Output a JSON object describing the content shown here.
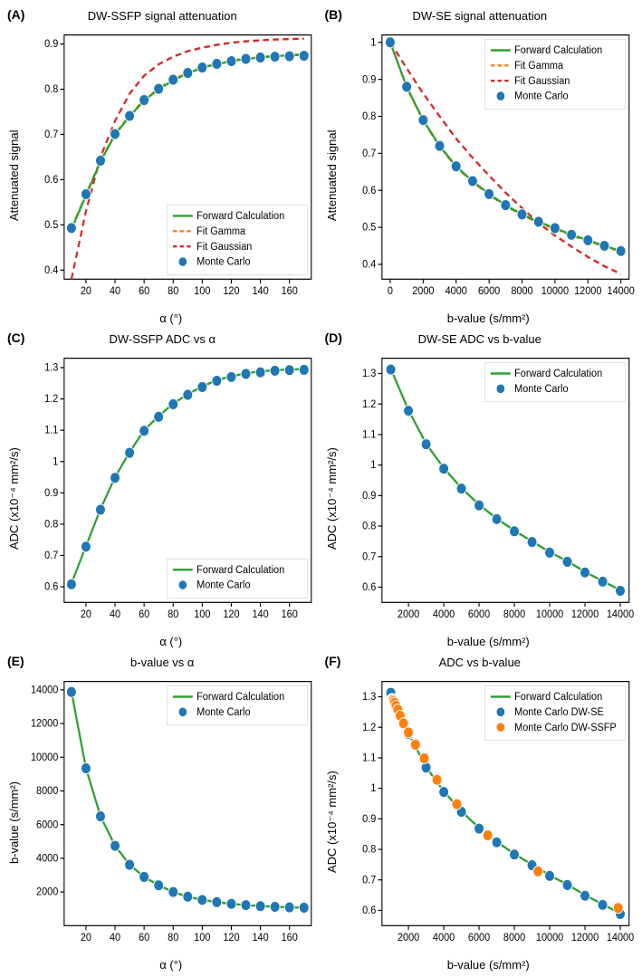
{
  "colors": {
    "forward": "#2ca02c",
    "gamma": "#ff7f0e",
    "gaussian": "#d62728",
    "mc": "#1f77b4",
    "mc_ssfp": "#ff7f0e"
  },
  "line_width": {
    "solid": 2,
    "dash": 2
  },
  "marker_radius": 5,
  "dash_pattern": "6,4",
  "panels": {
    "A": {
      "label": "(A)",
      "title": "DW-SSFP signal attenuation",
      "xlabel": "α (°)",
      "ylabel": "Attenuated signal",
      "xlim": [
        5,
        175
      ],
      "ylim": [
        0.38,
        0.92
      ],
      "xticks": [
        20,
        40,
        60,
        80,
        100,
        120,
        140,
        160
      ],
      "yticks": [
        0.4,
        0.5,
        0.6,
        0.7,
        0.8,
        0.9
      ],
      "legend": {
        "pos": "lower-right",
        "items": [
          {
            "type": "line",
            "color": "forward",
            "label": "Forward Calculation"
          },
          {
            "type": "dash",
            "color": "gamma",
            "label": "Fit Gamma"
          },
          {
            "type": "dash",
            "color": "gaussian",
            "label": "Fit Gaussian"
          },
          {
            "type": "marker",
            "color": "mc",
            "label": "Monte Carlo"
          }
        ]
      },
      "series": {
        "forward": {
          "x": [
            10,
            20,
            30,
            40,
            50,
            60,
            70,
            80,
            90,
            100,
            110,
            120,
            130,
            140,
            150,
            160,
            170
          ],
          "y": [
            0.49,
            0.565,
            0.64,
            0.7,
            0.74,
            0.775,
            0.8,
            0.82,
            0.835,
            0.848,
            0.855,
            0.862,
            0.867,
            0.87,
            0.873,
            0.875,
            0.876
          ]
        },
        "gamma": {
          "x": [
            10,
            20,
            30,
            40,
            50,
            60,
            70,
            80,
            90,
            100,
            110,
            120,
            130,
            140,
            150,
            160,
            170
          ],
          "y": [
            0.492,
            0.568,
            0.642,
            0.702,
            0.742,
            0.777,
            0.802,
            0.822,
            0.836,
            0.849,
            0.856,
            0.863,
            0.868,
            0.871,
            0.874,
            0.876,
            0.877
          ]
        },
        "gaussian": {
          "x": [
            10,
            20,
            30,
            40,
            50,
            60,
            70,
            80,
            90,
            100,
            110,
            120,
            130,
            140,
            150,
            160,
            170
          ],
          "y": [
            0.38,
            0.53,
            0.65,
            0.73,
            0.79,
            0.83,
            0.855,
            0.872,
            0.884,
            0.892,
            0.898,
            0.903,
            0.906,
            0.908,
            0.91,
            0.911,
            0.912
          ]
        },
        "mc": {
          "x": [
            10,
            20,
            30,
            40,
            50,
            60,
            70,
            80,
            90,
            100,
            110,
            120,
            130,
            140,
            150,
            160,
            170
          ],
          "y": [
            0.493,
            0.568,
            0.642,
            0.701,
            0.741,
            0.776,
            0.801,
            0.821,
            0.836,
            0.848,
            0.856,
            0.862,
            0.867,
            0.87,
            0.872,
            0.873,
            0.874
          ]
        }
      }
    },
    "B": {
      "label": "(B)",
      "title": "DW-SE signal attenuation",
      "xlabel": "b-value (s/mm²)",
      "ylabel": "Attenuated signal",
      "xlim": [
        -500,
        14500
      ],
      "ylim": [
        0.36,
        1.02
      ],
      "xticks": [
        0,
        2000,
        4000,
        6000,
        8000,
        10000,
        12000,
        14000
      ],
      "yticks": [
        0.4,
        0.5,
        0.6,
        0.7,
        0.8,
        0.9,
        1.0
      ],
      "legend": {
        "pos": "upper-right",
        "items": [
          {
            "type": "line",
            "color": "forward",
            "label": "Forward Calculation"
          },
          {
            "type": "dash",
            "color": "gamma",
            "label": "Fit Gamma"
          },
          {
            "type": "dash",
            "color": "gaussian",
            "label": "Fit Gaussian"
          },
          {
            "type": "marker",
            "color": "mc",
            "label": "Monte Carlo"
          }
        ]
      },
      "series": {
        "forward": {
          "x": [
            0,
            1000,
            2000,
            3000,
            4000,
            5000,
            6000,
            7000,
            8000,
            9000,
            10000,
            11000,
            12000,
            13000,
            14000
          ],
          "y": [
            1.0,
            0.88,
            0.79,
            0.72,
            0.665,
            0.625,
            0.59,
            0.56,
            0.535,
            0.515,
            0.498,
            0.48,
            0.465,
            0.45,
            0.436
          ]
        },
        "gamma": {
          "x": [
            0,
            1000,
            2000,
            3000,
            4000,
            5000,
            6000,
            7000,
            8000,
            9000,
            10000,
            11000,
            12000,
            13000,
            14000
          ],
          "y": [
            1.0,
            0.878,
            0.788,
            0.718,
            0.663,
            0.623,
            0.588,
            0.558,
            0.533,
            0.513,
            0.495,
            0.478,
            0.463,
            0.448,
            0.434
          ]
        },
        "gaussian": {
          "x": [
            0,
            1000,
            2000,
            3000,
            4000,
            5000,
            6000,
            7000,
            8000,
            9000,
            10000,
            11000,
            12000,
            13000,
            14000
          ],
          "y": [
            1.0,
            0.93,
            0.862,
            0.8,
            0.74,
            0.688,
            0.64,
            0.594,
            0.552,
            0.512,
            0.478,
            0.448,
            0.42,
            0.395,
            0.374
          ]
        },
        "mc": {
          "x": [
            0,
            1000,
            2000,
            3000,
            4000,
            5000,
            6000,
            7000,
            8000,
            9000,
            10000,
            11000,
            12000,
            13000,
            14000
          ],
          "y": [
            1.0,
            0.88,
            0.79,
            0.72,
            0.665,
            0.625,
            0.59,
            0.56,
            0.535,
            0.515,
            0.498,
            0.48,
            0.465,
            0.45,
            0.436
          ]
        }
      }
    },
    "C": {
      "label": "(C)",
      "title": "DW-SSFP ADC vs α",
      "xlabel": "α (°)",
      "ylabel": "ADC (x10⁻⁴ mm²/s)",
      "xlim": [
        5,
        175
      ],
      "ylim": [
        0.55,
        1.33
      ],
      "xticks": [
        20,
        40,
        60,
        80,
        100,
        120,
        140,
        160
      ],
      "yticks": [
        0.6,
        0.7,
        0.8,
        0.9,
        1.0,
        1.1,
        1.2,
        1.3
      ],
      "legend": {
        "pos": "lower-right",
        "items": [
          {
            "type": "line",
            "color": "forward",
            "label": "Forward Calculation"
          },
          {
            "type": "marker",
            "color": "mc",
            "label": "Monte Carlo"
          }
        ]
      },
      "series": {
        "forward": {
          "x": [
            10,
            20,
            30,
            40,
            50,
            60,
            70,
            80,
            90,
            100,
            110,
            120,
            130,
            140,
            150,
            160,
            170
          ],
          "y": [
            0.61,
            0.73,
            0.848,
            0.95,
            1.03,
            1.1,
            1.145,
            1.185,
            1.215,
            1.24,
            1.26,
            1.272,
            1.282,
            1.288,
            1.292,
            1.294,
            1.295
          ]
        },
        "mc": {
          "x": [
            10,
            20,
            30,
            40,
            50,
            60,
            70,
            80,
            90,
            100,
            110,
            120,
            130,
            140,
            150,
            160,
            170
          ],
          "y": [
            0.608,
            0.728,
            0.846,
            0.948,
            1.028,
            1.098,
            1.143,
            1.183,
            1.213,
            1.238,
            1.258,
            1.27,
            1.28,
            1.285,
            1.29,
            1.292,
            1.293
          ]
        }
      }
    },
    "D": {
      "label": "(D)",
      "title": "DW-SE ADC vs b-value",
      "xlabel": "b-value (s/mm²)",
      "ylabel": "ADC (x10⁻⁴ mm²/s)",
      "xlim": [
        500,
        14500
      ],
      "ylim": [
        0.55,
        1.35
      ],
      "xticks": [
        2000,
        4000,
        6000,
        8000,
        10000,
        12000,
        14000
      ],
      "yticks": [
        0.6,
        0.7,
        0.8,
        0.9,
        1.0,
        1.1,
        1.2,
        1.3
      ],
      "legend": {
        "pos": "upper-right",
        "items": [
          {
            "type": "line",
            "color": "forward",
            "label": "Forward Calculation"
          },
          {
            "type": "marker",
            "color": "mc",
            "label": "Monte Carlo"
          }
        ]
      },
      "series": {
        "forward": {
          "x": [
            1000,
            2000,
            3000,
            4000,
            5000,
            6000,
            7000,
            8000,
            9000,
            10000,
            11000,
            12000,
            13000,
            14000
          ],
          "y": [
            1.315,
            1.18,
            1.07,
            0.99,
            0.925,
            0.87,
            0.825,
            0.785,
            0.75,
            0.715,
            0.685,
            0.65,
            0.62,
            0.59
          ]
        },
        "mc": {
          "x": [
            1000,
            2000,
            3000,
            4000,
            5000,
            6000,
            7000,
            8000,
            9000,
            10000,
            11000,
            12000,
            13000,
            14000
          ],
          "y": [
            1.313,
            1.178,
            1.068,
            0.988,
            0.923,
            0.868,
            0.823,
            0.783,
            0.748,
            0.713,
            0.683,
            0.648,
            0.618,
            0.588
          ]
        }
      }
    },
    "E": {
      "label": "(E)",
      "title": "b-value vs α",
      "xlabel": "α (°)",
      "ylabel": "b-value (s/mm²)",
      "xlim": [
        5,
        175
      ],
      "ylim": [
        0,
        14500
      ],
      "xticks": [
        20,
        40,
        60,
        80,
        100,
        120,
        140,
        160
      ],
      "yticks": [
        2000,
        4000,
        6000,
        8000,
        10000,
        12000,
        14000
      ],
      "legend": {
        "pos": "upper-right",
        "items": [
          {
            "type": "line",
            "color": "forward",
            "label": "Forward Calculation"
          },
          {
            "type": "marker",
            "color": "mc",
            "label": "Monte Carlo"
          }
        ]
      },
      "series": {
        "forward": {
          "x": [
            10,
            20,
            30,
            40,
            50,
            60,
            70,
            80,
            90,
            100,
            110,
            120,
            130,
            140,
            150,
            160,
            170
          ],
          "y": [
            13900,
            9350,
            6500,
            4750,
            3620,
            2900,
            2400,
            2000,
            1720,
            1530,
            1400,
            1300,
            1220,
            1160,
            1120,
            1090,
            1070
          ]
        },
        "mc": {
          "x": [
            10,
            20,
            30,
            40,
            50,
            60,
            70,
            80,
            90,
            100,
            110,
            120,
            130,
            140,
            150,
            160,
            170
          ],
          "y": [
            13880,
            9340,
            6490,
            4740,
            3615,
            2895,
            2395,
            1998,
            1718,
            1528,
            1398,
            1298,
            1218,
            1158,
            1118,
            1088,
            1068
          ]
        }
      }
    },
    "F": {
      "label": "(F)",
      "title": "ADC vs b-value",
      "xlabel": "b-value (s/mm²)",
      "ylabel": "ADC (x10⁻⁴ mm²/s)",
      "xlim": [
        500,
        14500
      ],
      "ylim": [
        0.55,
        1.35
      ],
      "xticks": [
        2000,
        4000,
        6000,
        8000,
        10000,
        12000,
        14000
      ],
      "yticks": [
        0.6,
        0.7,
        0.8,
        0.9,
        1.0,
        1.1,
        1.2,
        1.3
      ],
      "legend": {
        "pos": "upper-right",
        "items": [
          {
            "type": "line",
            "color": "forward",
            "label": "Forward Calculation"
          },
          {
            "type": "marker",
            "color": "mc",
            "label": "Monte Carlo DW-SE"
          },
          {
            "type": "marker",
            "color": "mc_ssfp",
            "label": "Monte Carlo DW-SSFP"
          }
        ]
      },
      "series": {
        "forward": {
          "x": [
            1000,
            2000,
            3000,
            4000,
            5000,
            6000,
            7000,
            8000,
            9000,
            10000,
            11000,
            12000,
            13000,
            14000
          ],
          "y": [
            1.315,
            1.18,
            1.07,
            0.99,
            0.925,
            0.87,
            0.825,
            0.785,
            0.75,
            0.715,
            0.685,
            0.65,
            0.62,
            0.59
          ]
        },
        "mc": {
          "x": [
            1000,
            2000,
            3000,
            4000,
            5000,
            6000,
            7000,
            8000,
            9000,
            10000,
            11000,
            12000,
            13000,
            14000
          ],
          "y": [
            1.313,
            1.178,
            1.068,
            0.988,
            0.923,
            0.868,
            0.823,
            0.783,
            0.748,
            0.713,
            0.683,
            0.648,
            0.618,
            0.588
          ]
        },
        "mc_ssfp": {
          "x": [
            1070,
            1088,
            1118,
            1158,
            1218,
            1298,
            1398,
            1528,
            1718,
            1998,
            2395,
            2895,
            3615,
            4740,
            6490,
            9340,
            13880
          ],
          "y": [
            1.293,
            1.292,
            1.29,
            1.285,
            1.28,
            1.27,
            1.258,
            1.238,
            1.213,
            1.183,
            1.143,
            1.098,
            1.028,
            0.948,
            0.846,
            0.728,
            0.608
          ]
        }
      }
    }
  }
}
